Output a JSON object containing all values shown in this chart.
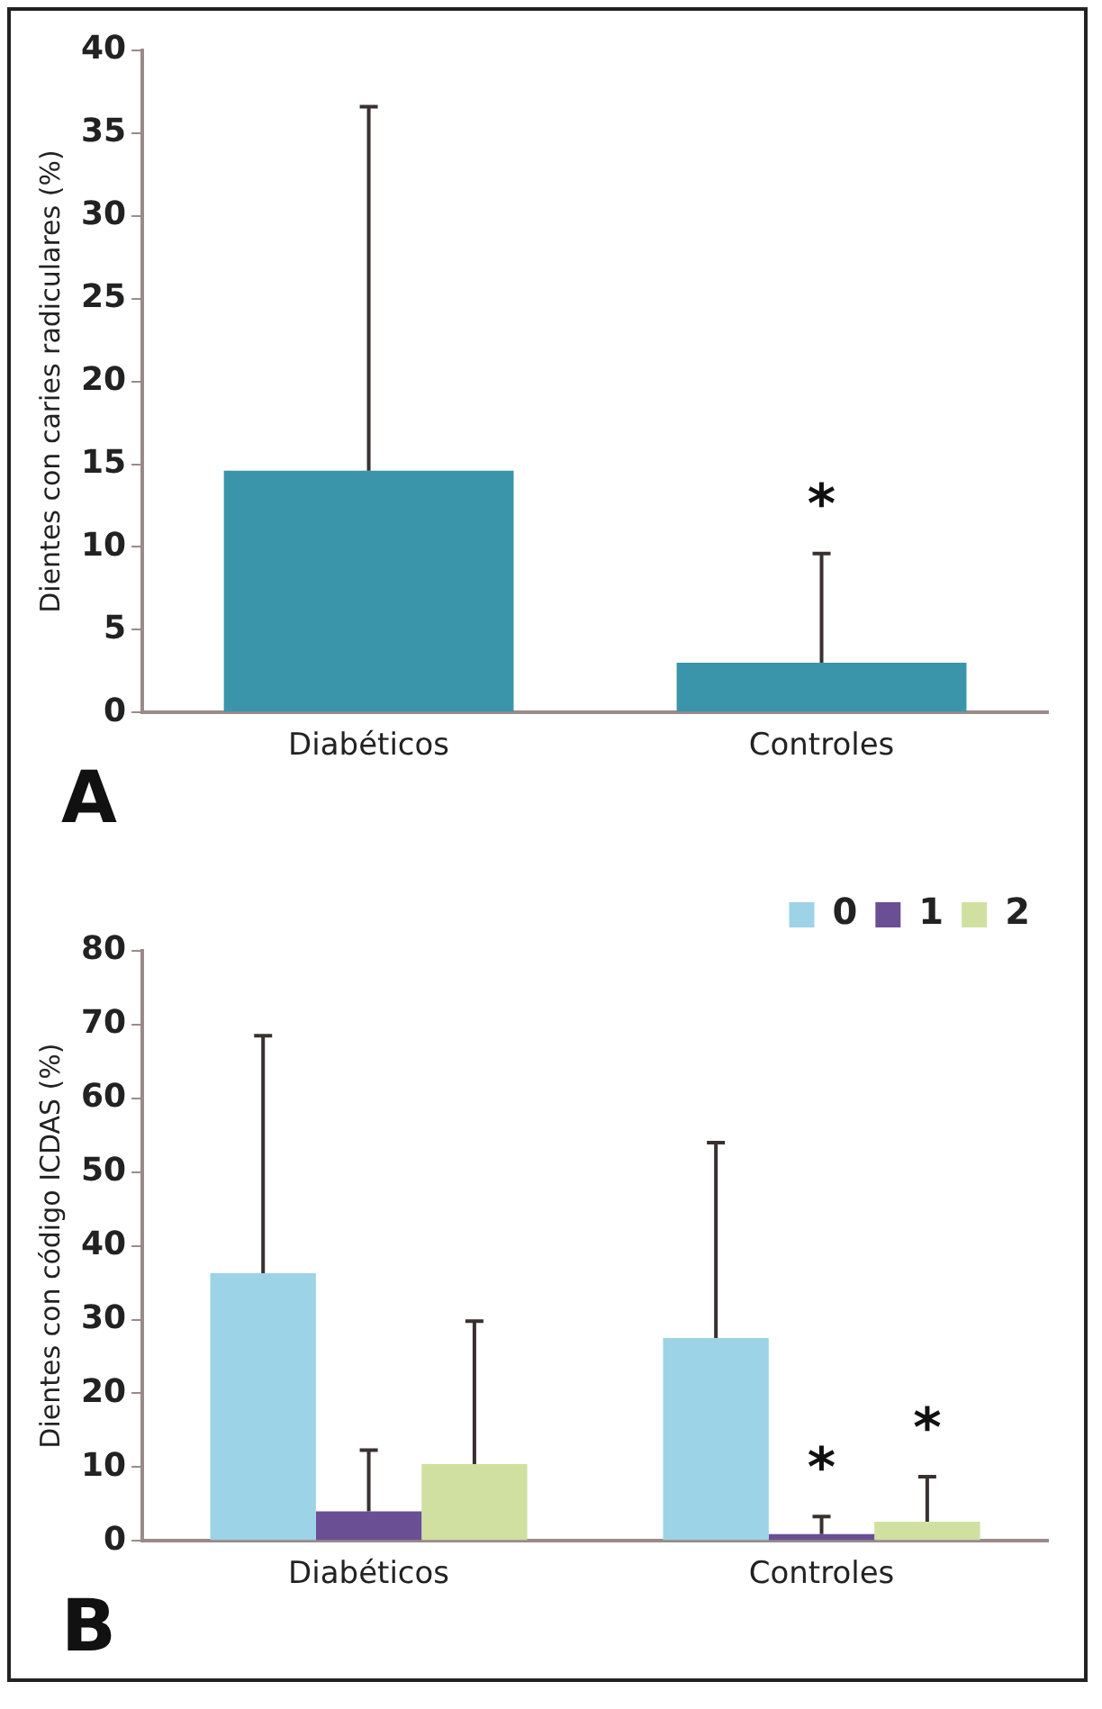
{
  "chart_data": [
    {
      "type": "bar",
      "ylabel": "Dientes con caries radiculares (%)",
      "categories": [
        "Diabéticos",
        "Controles"
      ],
      "values": [
        14.6,
        3.0
      ],
      "errors": [
        [
          14.6,
          36.6
        ],
        [
          3.0,
          9.6
        ]
      ],
      "color": "#3a95ab",
      "ylim": [
        0,
        40
      ],
      "yticks": [
        0,
        5,
        10,
        15,
        20,
        25,
        30,
        35,
        40
      ],
      "grid": false,
      "legend": false,
      "annotations": [
        "A",
        "*"
      ]
    },
    {
      "type": "bar",
      "ylabel": "Dientes con código ICDAS (%)",
      "categories": [
        "Diabéticos",
        "Controles"
      ],
      "series": [
        {
          "name": "0",
          "color": "#9dd3e6",
          "values": [
            36.3,
            27.5
          ],
          "errors": [
            [
              36.3,
              68.5
            ],
            [
              27.5,
              54.0
            ]
          ]
        },
        {
          "name": "1",
          "color": "#6a4f94",
          "values": [
            4.0,
            0.9
          ],
          "errors": [
            [
              4.0,
              12.3
            ],
            [
              0.9,
              3.3
            ]
          ]
        },
        {
          "name": "2",
          "color": "#cfe0a0",
          "values": [
            10.4,
            2.6
          ],
          "errors": [
            [
              10.4,
              29.8
            ],
            [
              2.6,
              8.7
            ]
          ]
        }
      ],
      "ylim": [
        0,
        80
      ],
      "yticks": [
        0,
        10,
        20,
        30,
        40,
        50,
        60,
        70,
        80
      ],
      "grid": false,
      "legend": "top",
      "annotations": [
        "B",
        "*",
        "*"
      ]
    }
  ]
}
